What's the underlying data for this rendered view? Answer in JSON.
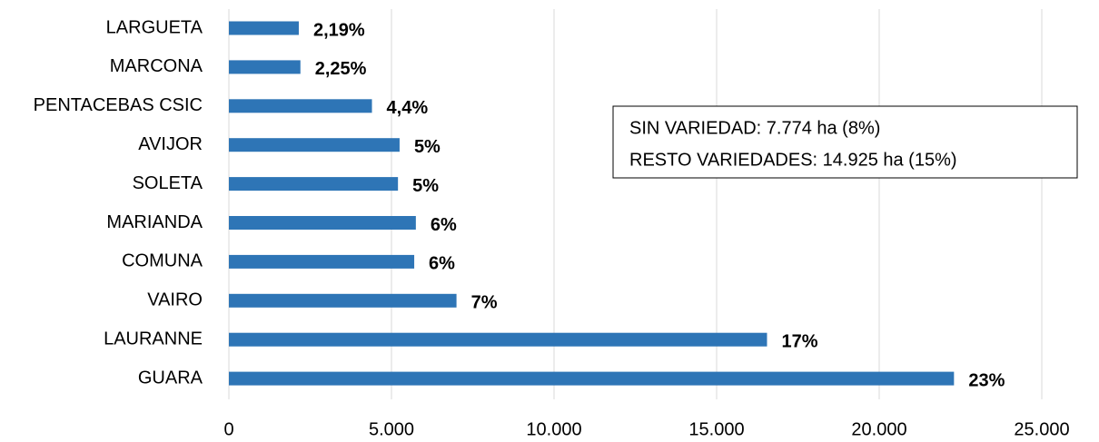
{
  "chart_data": {
    "type": "hbar",
    "categories": [
      "LARGUETA",
      "MARCONA",
      "PENTACEBAS CSIC",
      "AVIJOR",
      "SOLETA",
      "MARIANDA",
      "COMUNA",
      "VAIRO",
      "LAURANNE",
      "GUARA"
    ],
    "values": [
      2150,
      2200,
      4400,
      5250,
      5200,
      5750,
      5700,
      7000,
      16550,
      22300
    ],
    "bar_labels": [
      "2,19%",
      "2,25%",
      "4,4%",
      "5%",
      "5%",
      "6%",
      "6%",
      "7%",
      "17%",
      "23%"
    ],
    "color": "#2e75b6",
    "xlim": [
      0,
      25000
    ],
    "xticks": [
      0,
      {
        "value": 5000,
        "label": "5.000"
      },
      {
        "value": 10000,
        "label": "10.000"
      },
      {
        "value": 15000,
        "label": "15.000"
      },
      {
        "value": 20000,
        "label": "20.000"
      },
      {
        "value": 25000,
        "label": "25.000"
      }
    ],
    "grid": true,
    "annotations": [
      "SIN VARIEDAD: 7.774 ha (8%)",
      "RESTO VARIEDADES: 14.925 ha (15%)"
    ]
  }
}
